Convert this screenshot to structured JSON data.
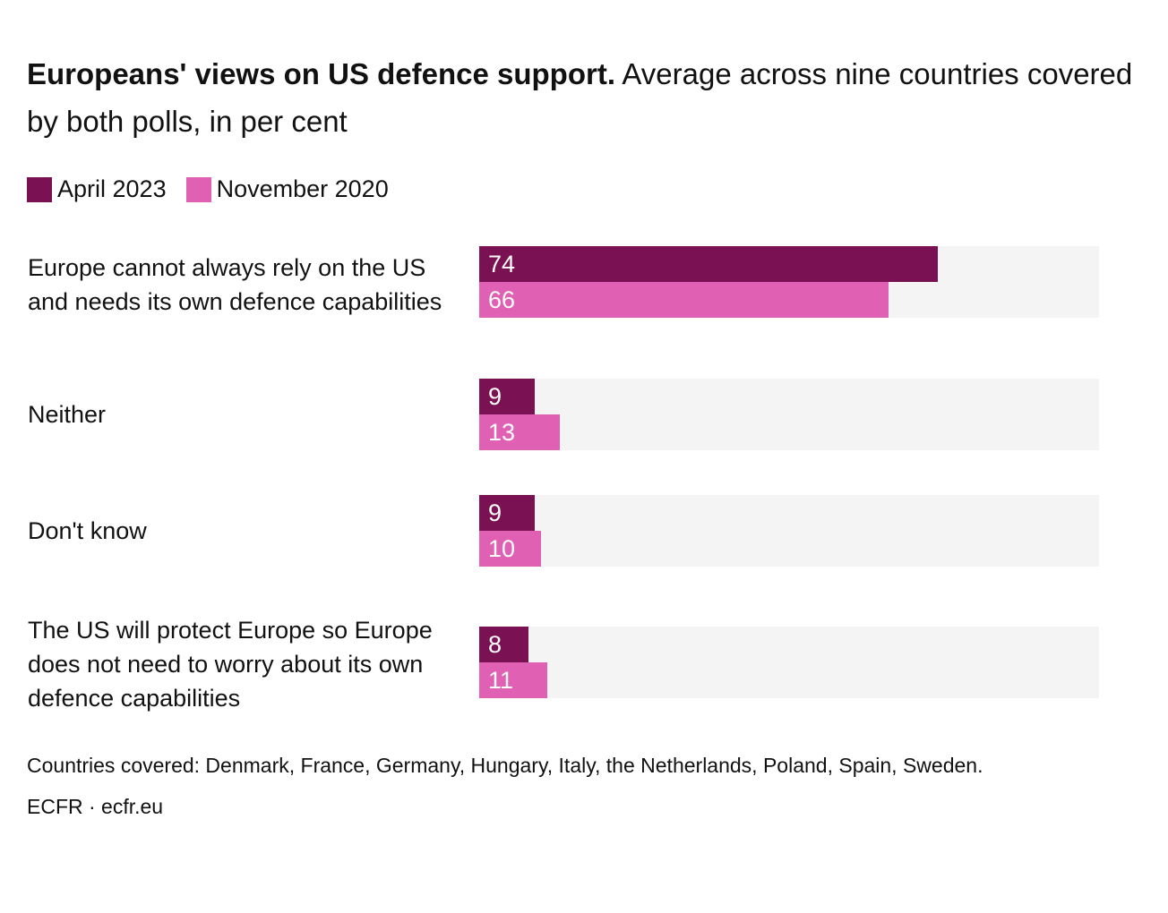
{
  "title_bold": "Europeans' views on US defence support.",
  "title_rest": "Average across nine countries covered by both polls, in per cent",
  "footnote": "Countries covered: Denmark, France, Germany, Hungary, Italy, the Netherlands, Poland, Spain, Sweden.",
  "source": "ECFR · ecfr.eu",
  "colors": {
    "april_2023": "#7a1152",
    "november_2020": "#e060b4",
    "track": "#f4f4f4"
  },
  "chart_data": {
    "type": "bar",
    "orientation": "horizontal",
    "title": "Europeans' views on US defence support.",
    "subtitle": "Average across nine countries covered by both polls, in per cent",
    "xlim": [
      0,
      100
    ],
    "grid": false,
    "legend_position": "top-left",
    "categories": [
      "Europe cannot always rely on the US and needs its own defence capabilities",
      "Neither",
      "Don't know",
      "The US will protect Europe so Europe does not need to worry about its own defence capabilities"
    ],
    "series": [
      {
        "name": "April 2023",
        "color": "#7a1152",
        "values": [
          74,
          9,
          9,
          8
        ]
      },
      {
        "name": "November 2020",
        "color": "#e060b4",
        "values": [
          66,
          13,
          10,
          11
        ]
      }
    ]
  }
}
